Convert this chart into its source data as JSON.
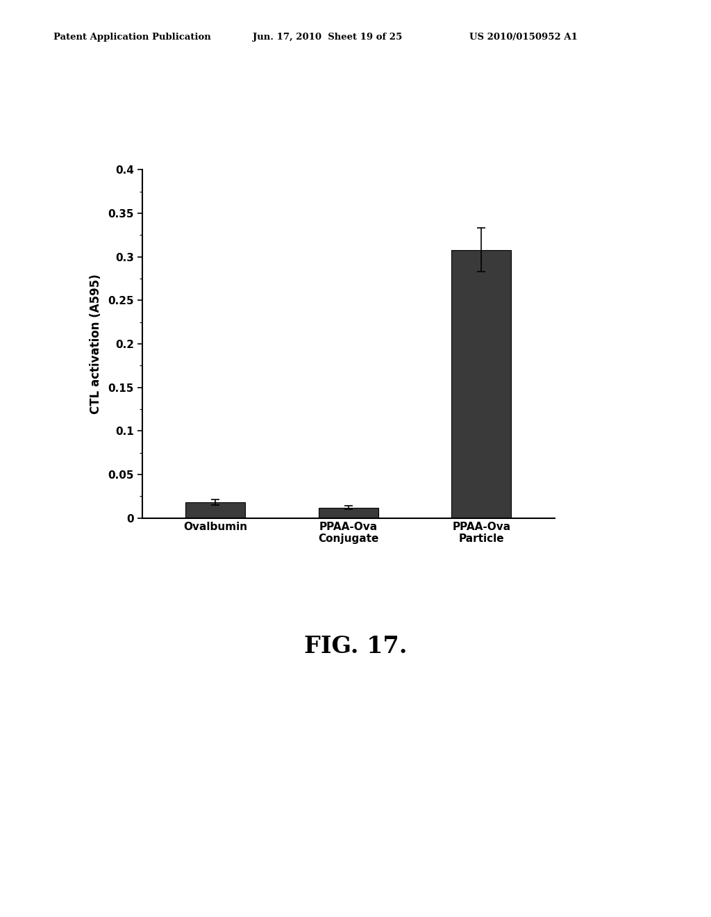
{
  "categories": [
    "Ovalbumin",
    "PPAA-Ova\nConjugate",
    "PPAA-Ova\nParticle"
  ],
  "values": [
    0.018,
    0.012,
    0.308
  ],
  "errors": [
    0.003,
    0.002,
    0.025
  ],
  "bar_color": "#3a3a3a",
  "bar_width": 0.45,
  "ylabel": "CTL activation (A595)",
  "ylim": [
    0,
    0.4
  ],
  "yticks": [
    0,
    0.05,
    0.1,
    0.15,
    0.2,
    0.25,
    0.3,
    0.35,
    0.4
  ],
  "figure_caption": "FIG. 17.",
  "header_left": "Patent Application Publication",
  "header_mid": "Jun. 17, 2010  Sheet 19 of 25",
  "header_right": "US 2010/0150952 A1",
  "bg_color": "#ffffff",
  "axis_fontsize": 12,
  "tick_fontsize": 11,
  "caption_fontsize": 24
}
